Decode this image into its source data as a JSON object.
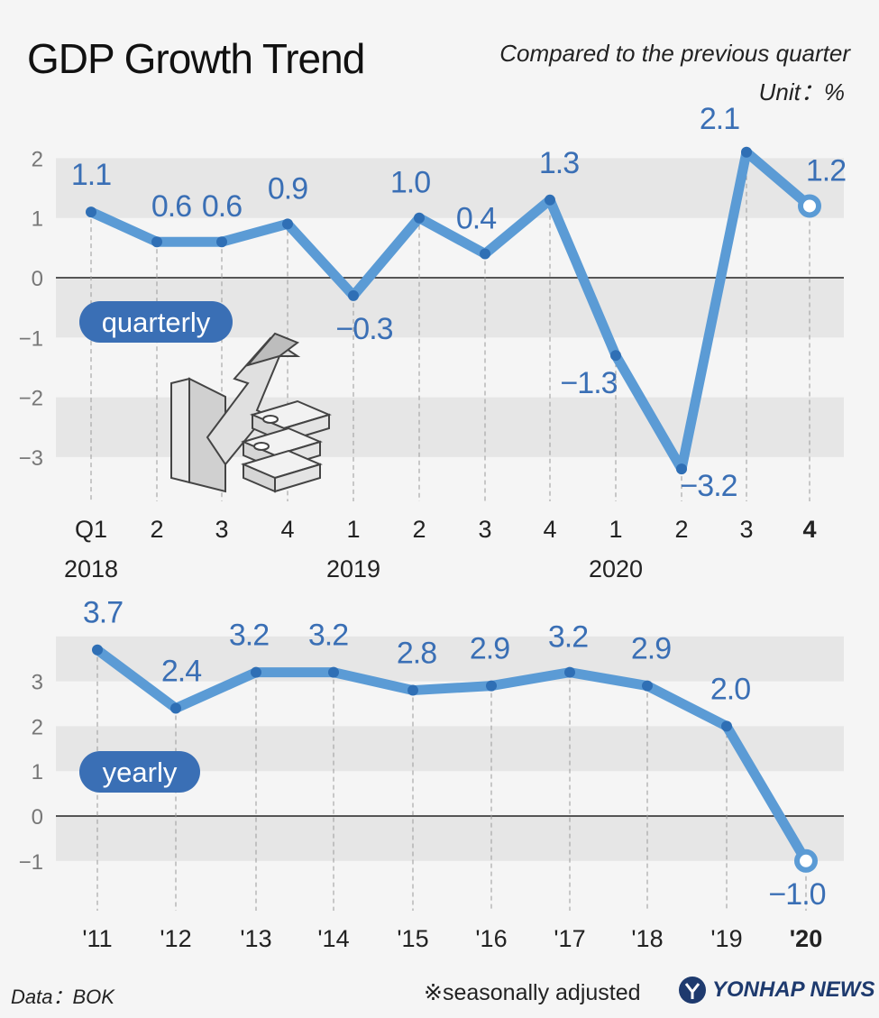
{
  "header": {
    "title": "GDP Growth Trend",
    "subtitle": "Compared to the previous quarter",
    "unit": "Unit：%"
  },
  "chart_data": [
    {
      "type": "line",
      "badge": "quarterly",
      "categories": [
        "Q1",
        "2",
        "3",
        "4",
        "1",
        "2",
        "3",
        "4",
        "1",
        "2",
        "3",
        "4"
      ],
      "year_labels": [
        {
          "label": "2018",
          "index": 0
        },
        {
          "label": "2019",
          "index": 4
        },
        {
          "label": "2020",
          "index": 8
        }
      ],
      "values": [
        1.1,
        0.6,
        0.6,
        0.9,
        -0.3,
        1.0,
        0.4,
        1.3,
        -1.3,
        -3.2,
        2.1,
        1.2
      ],
      "value_labels": [
        "1.1",
        "0.6",
        "0.6",
        "0.9",
        "−0.3",
        "1.0",
        "0.4",
        "1.3",
        "−1.3",
        "−3.2",
        "2.1",
        "1.2"
      ],
      "ylim": [
        -3.5,
        2.5
      ],
      "yticks": [
        "2",
        "1",
        "0",
        "−1",
        "−2",
        "−3"
      ],
      "ytick_values": [
        2,
        1,
        0,
        -1,
        -2,
        -3
      ],
      "highlight_last": true,
      "line_color": "#5b9bd5",
      "label_color": "#3a6fb5"
    },
    {
      "type": "line",
      "badge": "yearly",
      "categories": [
        "'11",
        "'12",
        "'13",
        "'14",
        "'15",
        "'16",
        "'17",
        "'18",
        "'19",
        "'20"
      ],
      "values": [
        3.7,
        2.4,
        3.2,
        3.2,
        2.8,
        2.9,
        3.2,
        2.9,
        2.0,
        -1.0
      ],
      "value_labels": [
        "3.7",
        "2.4",
        "3.2",
        "3.2",
        "2.8",
        "2.9",
        "3.2",
        "2.9",
        "2.0",
        "−1.0"
      ],
      "ylim": [
        -2,
        4
      ],
      "yticks": [
        "3",
        "2",
        "1",
        "0",
        "−1"
      ],
      "ytick_values": [
        3,
        2,
        1,
        0,
        -1
      ],
      "highlight_last": true,
      "line_color": "#5b9bd5",
      "label_color": "#3a6fb5"
    }
  ],
  "footer": {
    "source": "Data：BOK",
    "note": "※seasonally adjusted",
    "logo": "YONHAP NEWS"
  },
  "icons": {
    "illustration": "money-growth-chart-icon",
    "logo_mark": "yonhap-globe-icon"
  }
}
